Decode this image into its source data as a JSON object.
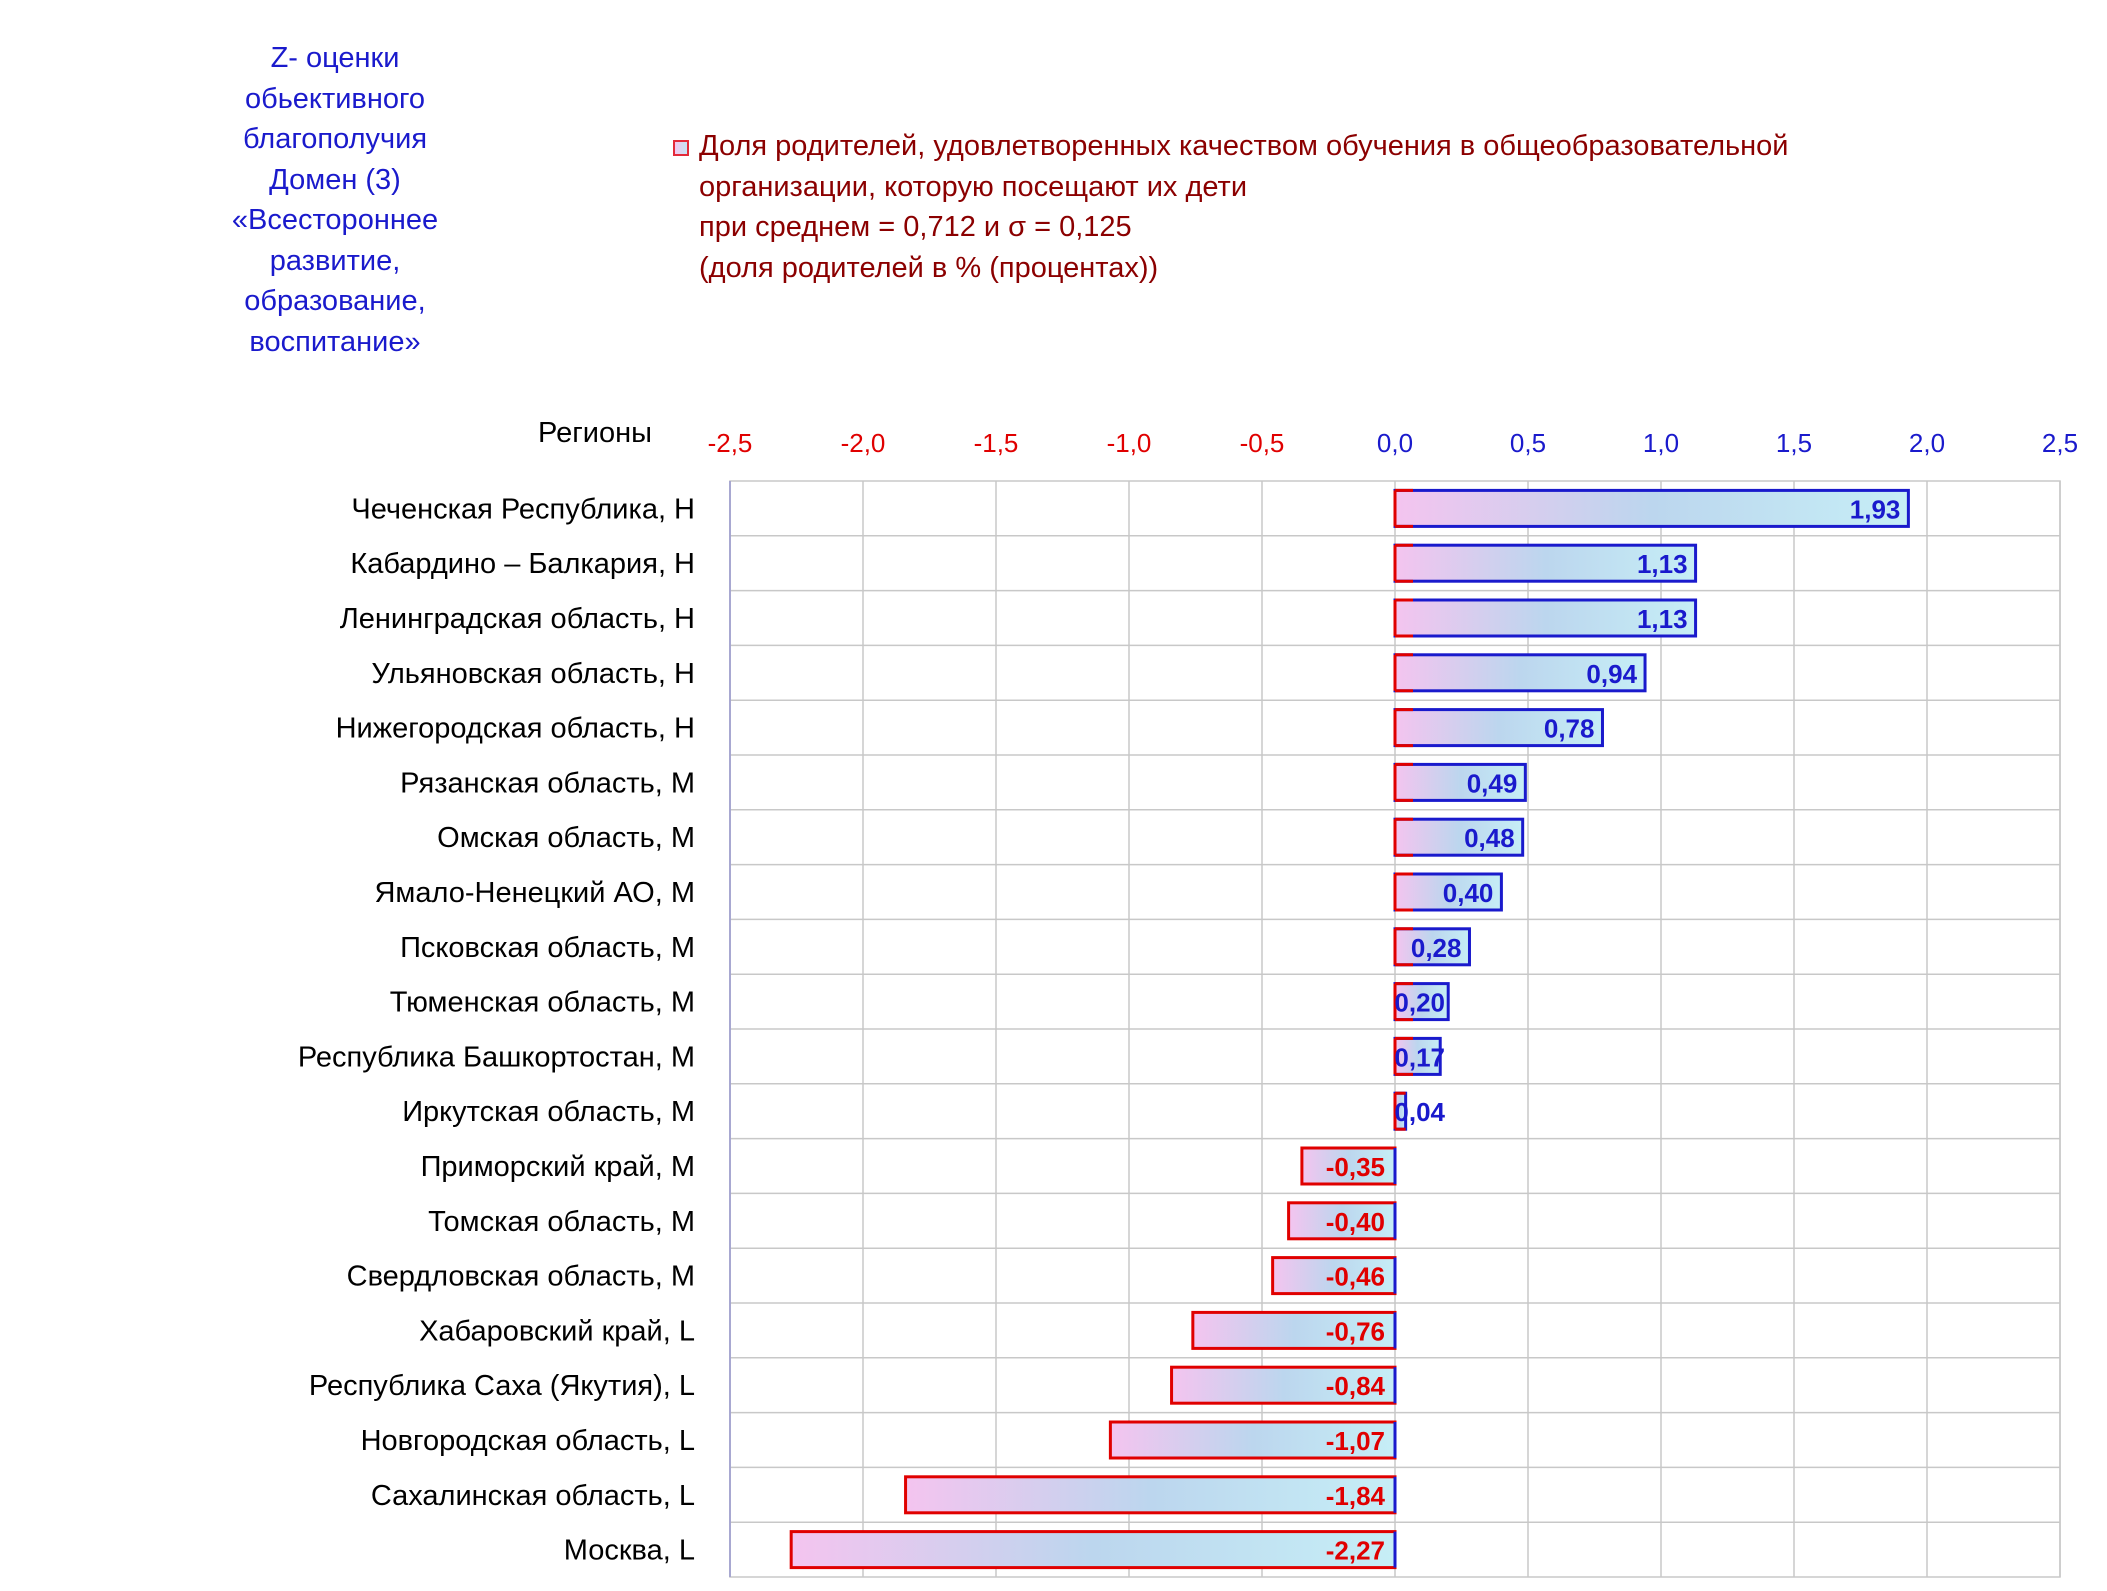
{
  "side_title": "Z- оценки\nобьективного\nблагополучия\nДомен (3)\n«Всестороннее\nразвитие,\nобразование,\nвоспитание»",
  "legend": {
    "text": "Доля родителей, удовлетворенных качеством обучения в общеобразовательной\nорганизации, которую посещают их дети\nпри среднем = 0,712  и σ = 0,125\n(доля родителей в % (процентах))"
  },
  "colors": {
    "title_blue": "#1a1acc",
    "legend_darkred": "#8b0000",
    "positive": "#1a1acc",
    "negative": "#e00000",
    "bar_gradient_start": "#f3c6ee",
    "bar_gradient_end": "#c6eef6",
    "grid": "#c8c8c8"
  },
  "chart_data": {
    "type": "bar",
    "orientation": "horizontal",
    "category_header": "Регионы",
    "xlim": [
      -2.5,
      2.5
    ],
    "tick_labels": [
      "-2,5",
      "-2,0",
      "-1,5",
      "-1,0",
      "-0,5",
      "0,0",
      "0,5",
      "1,0",
      "1,5",
      "2,0",
      "2,5"
    ],
    "categories": [
      "Чеченская Республика,  H",
      "Кабардино – Балкария,  H",
      "Ленинградская область,  H",
      "Ульяновская область,  H",
      "Нижегородская область,  H",
      "Рязанская область,  M",
      "Омская область,  M",
      "Ямало-Ненецкий АО,  M",
      "Псковская область,  M",
      "Тюменская область,  M",
      "Республика Башкортостан,  M",
      "Иркутская область,  M",
      "Приморский край,  M",
      "Томская область,  M",
      "Свердловская область,  M",
      "Хабаровский край,  L",
      "Республика Саха (Якутия),  L",
      "Новгородская область,  L",
      "Сахалинская область,  L",
      "Москва,  L"
    ],
    "values": [
      1.93,
      1.13,
      1.13,
      0.94,
      0.78,
      0.49,
      0.48,
      0.4,
      0.28,
      0.2,
      0.17,
      0.04,
      -0.35,
      -0.4,
      -0.46,
      -0.76,
      -0.84,
      -1.07,
      -1.84,
      -2.27
    ],
    "value_labels": [
      "1,93",
      "1,13",
      "1,13",
      "0,94",
      "0,78",
      "0,49",
      "0,48",
      "0,40",
      "0,28",
      "0,20",
      "0,17",
      "0,04",
      "-0,35",
      "-0,40",
      "-0,46",
      "-0,76",
      "-0,84",
      "-1,07",
      "-1,84",
      "-2,27"
    ],
    "grid": true
  }
}
